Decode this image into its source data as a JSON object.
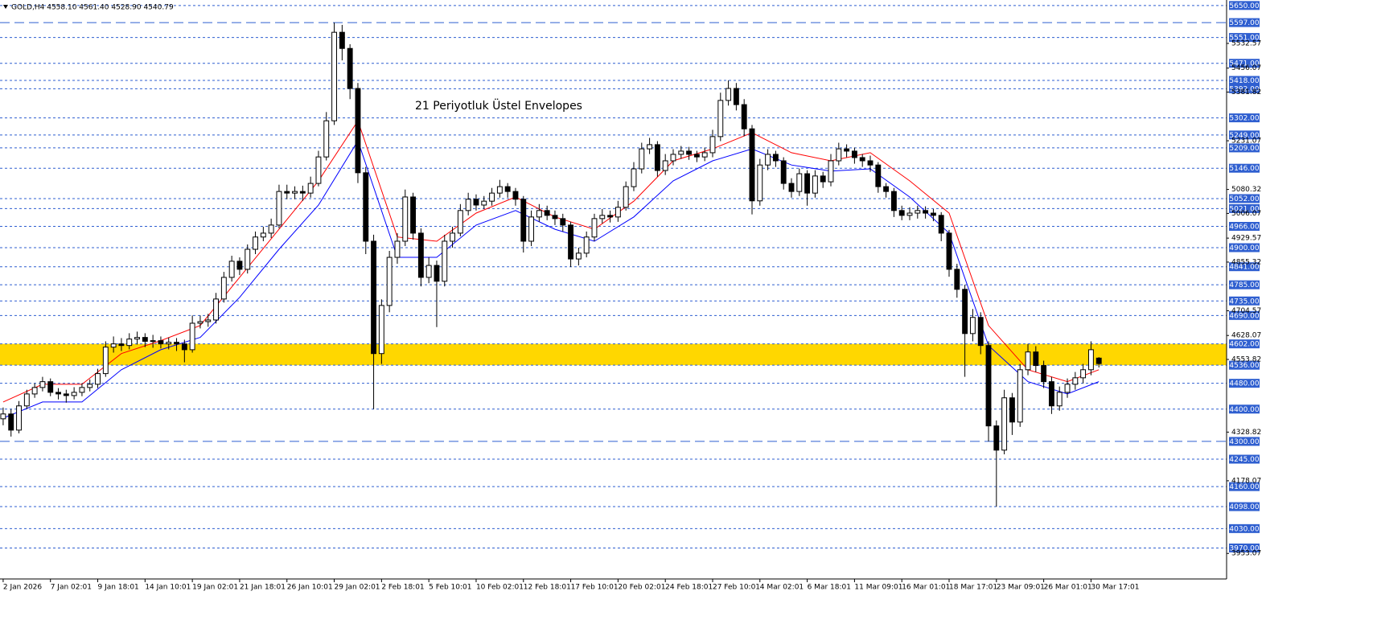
{
  "chart_data": {
    "type": "candlestick",
    "header": "GOLD,H4  4558.10 4561.40 4528.90 4540.79",
    "annotation": "21 Periyotluk Üstel Envelopes",
    "annotation_color": "#3d6fd8",
    "up_color": "#ffffff",
    "down_color": "#000000",
    "wick_color": "#000000",
    "ylim": [
      3874,
      5667
    ],
    "xlim": [
      -0.4,
      155.2
    ],
    "zone": {
      "from": 4536,
      "to": 4602,
      "color": "#ffd700"
    },
    "x": [
      0,
      1,
      2,
      3,
      4,
      5,
      6,
      7,
      8,
      9,
      10,
      11,
      12,
      13,
      14,
      15,
      16,
      17,
      18,
      19,
      20,
      21,
      22,
      23,
      24,
      25,
      26,
      27,
      28,
      29,
      30,
      31,
      32,
      33,
      34,
      35,
      36,
      37,
      38,
      39,
      40,
      41,
      42,
      43,
      44,
      45,
      46,
      47,
      48,
      49,
      50,
      51,
      52,
      53,
      54,
      55,
      56,
      57,
      58,
      59,
      60,
      61,
      62,
      63,
      64,
      65,
      66,
      67,
      68,
      69,
      70,
      71,
      72,
      73,
      74,
      75,
      76,
      77,
      78,
      79,
      80,
      81,
      82,
      83,
      84,
      85,
      86,
      87,
      88,
      89,
      90,
      91,
      92,
      93,
      94,
      95,
      96,
      97,
      98,
      99,
      100,
      101,
      102,
      103,
      104,
      105,
      106,
      107,
      108,
      109,
      110,
      111,
      112,
      113,
      114,
      115,
      116,
      117,
      118,
      119,
      120,
      121,
      122,
      123,
      124,
      125,
      126,
      127,
      128,
      129,
      130,
      131,
      132,
      133,
      134,
      135,
      136,
      137,
      138,
      139
    ],
    "open": [
      4370,
      4385,
      4335,
      4410,
      4447,
      4467,
      4485,
      4452,
      4447,
      4442,
      4452,
      4467,
      4477,
      4510,
      4592,
      4602,
      4597,
      4617,
      4622,
      4610,
      4612,
      4602,
      4607,
      4602,
      4584,
      4666,
      4671,
      4676,
      4741,
      4808,
      4858,
      4833,
      4895,
      4933,
      4945,
      4970,
      5074,
      5069,
      5074,
      5069,
      5099,
      5181,
      5293,
      5567,
      5517,
      5393,
      5132,
      4920,
      4572,
      4721,
      4870,
      4920,
      5057,
      4945,
      4808,
      4845,
      4796,
      4920,
      4945,
      5015,
      5050,
      5032,
      5044,
      5069,
      5089,
      5074,
      5050,
      4920,
      4995,
      5015,
      5000,
      4990,
      4970,
      4865,
      4883,
      4933,
      4990,
      5000,
      4995,
      5025,
      5089,
      5144,
      5206,
      5219,
      5139,
      5169,
      5189,
      5199,
      5189,
      5181,
      5194,
      5244,
      5356,
      5393,
      5343,
      5268,
      5045,
      5156,
      5189,
      5169,
      5099,
      5074,
      5129,
      5069,
      5122,
      5104,
      5169,
      5206,
      5199,
      5179,
      5169,
      5156,
      5089,
      5074,
      5015,
      5000,
      5007,
      5015,
      5007,
      5000,
      4945,
      4833,
      4771,
      4634,
      4684,
      4597,
      4348,
      4273,
      4435,
      4360,
      4522,
      4577,
      4535,
      4485,
      4410,
      4452,
      4477,
      4497,
      4522,
      4558
    ],
    "high": [
      4405,
      4400,
      4425,
      4460,
      4480,
      4500,
      4495,
      4465,
      4460,
      4468,
      4480,
      4492,
      4525,
      4610,
      4625,
      4620,
      4635,
      4640,
      4635,
      4630,
      4625,
      4622,
      4620,
      4615,
      4690,
      4690,
      4695,
      4760,
      4825,
      4875,
      4870,
      4910,
      4950,
      4965,
      4990,
      5095,
      5095,
      5090,
      5092,
      5120,
      5200,
      5320,
      5597,
      5590,
      5530,
      5410,
      5150,
      4940,
      4740,
      4890,
      4945,
      5080,
      5070,
      4960,
      4870,
      4860,
      4940,
      4965,
      5035,
      5070,
      5065,
      5060,
      5085,
      5110,
      5100,
      5085,
      5060,
      5015,
      5035,
      5030,
      5015,
      5005,
      4980,
      4900,
      4950,
      5005,
      5020,
      5015,
      5045,
      5105,
      5165,
      5225,
      5240,
      5230,
      5190,
      5205,
      5215,
      5212,
      5200,
      5210,
      5265,
      5380,
      5418,
      5410,
      5360,
      5280,
      5175,
      5205,
      5200,
      5180,
      5115,
      5145,
      5140,
      5140,
      5135,
      5190,
      5225,
      5220,
      5210,
      5190,
      5185,
      5165,
      5100,
      5085,
      5030,
      5025,
      5030,
      5028,
      5020,
      5010,
      4955,
      4850,
      4785,
      4710,
      4700,
      4610,
      4365,
      4460,
      4450,
      4540,
      4602,
      4595,
      4550,
      4500,
      4470,
      4495,
      4515,
      4540,
      4610,
      4561
    ],
    "low": [
      4350,
      4315,
      4325,
      4400,
      4435,
      4455,
      4440,
      4430,
      4420,
      4430,
      4440,
      4455,
      4465,
      4500,
      4575,
      4580,
      4585,
      4600,
      4592,
      4590,
      4588,
      4585,
      4580,
      4545,
      4575,
      4650,
      4655,
      4665,
      4730,
      4795,
      4815,
      4820,
      4880,
      4920,
      4930,
      4960,
      5050,
      5050,
      5045,
      5055,
      5090,
      5170,
      5280,
      5480,
      5360,
      5100,
      4880,
      4400,
      4540,
      4700,
      4850,
      4905,
      4925,
      4780,
      4790,
      4654,
      4780,
      4900,
      4935,
      5000,
      5015,
      5020,
      5030,
      5055,
      5055,
      5030,
      4885,
      4905,
      4980,
      4985,
      4970,
      4950,
      4840,
      4845,
      4870,
      4920,
      4975,
      4978,
      4980,
      5015,
      5075,
      5130,
      5190,
      5120,
      5125,
      5155,
      5175,
      5172,
      5165,
      5168,
      5180,
      5230,
      5340,
      5325,
      5245,
      5003,
      5030,
      5140,
      5150,
      5080,
      5055,
      5060,
      5030,
      5055,
      5085,
      5090,
      5155,
      5180,
      5160,
      5150,
      5135,
      5070,
      5055,
      4995,
      4985,
      4985,
      4990,
      4990,
      4982,
      4920,
      4810,
      4745,
      4500,
      4610,
      4570,
      4300,
      4098,
      4260,
      4320,
      4345,
      4505,
      4515,
      4465,
      4385,
      4395,
      4435,
      4460,
      4480,
      4505,
      4529
    ],
    "close": [
      4385,
      4335,
      4410,
      4447,
      4467,
      4485,
      4452,
      4447,
      4442,
      4452,
      4467,
      4477,
      4510,
      4592,
      4602,
      4597,
      4617,
      4622,
      4610,
      4612,
      4602,
      4607,
      4602,
      4584,
      4666,
      4671,
      4676,
      4741,
      4808,
      4858,
      4833,
      4895,
      4933,
      4945,
      4970,
      5074,
      5069,
      5074,
      5069,
      5099,
      5181,
      5293,
      5567,
      5517,
      5393,
      5132,
      4920,
      4572,
      4721,
      4870,
      4920,
      5057,
      4945,
      4808,
      4845,
      4796,
      4920,
      4945,
      5015,
      5050,
      5032,
      5044,
      5069,
      5089,
      5074,
      5050,
      4920,
      4995,
      5015,
      5000,
      4990,
      4970,
      4865,
      4883,
      4933,
      4990,
      5000,
      4995,
      5025,
      5089,
      5144,
      5206,
      5219,
      5139,
      5169,
      5189,
      5199,
      5189,
      5181,
      5194,
      5244,
      5356,
      5393,
      5343,
      5268,
      5045,
      5156,
      5189,
      5169,
      5099,
      5074,
      5129,
      5069,
      5122,
      5104,
      5169,
      5206,
      5199,
      5179,
      5169,
      5156,
      5089,
      5074,
      5015,
      5000,
      5007,
      5015,
      5007,
      5000,
      4945,
      4833,
      4771,
      4634,
      4684,
      4597,
      4348,
      4273,
      4435,
      4360,
      4522,
      4577,
      4535,
      4485,
      4410,
      4452,
      4477,
      4497,
      4522,
      4584,
      4541
    ],
    "envelopes": [
      {
        "color": "#ff0000",
        "x": [
          0,
          5,
          10,
          15,
          20,
          25,
          30,
          35,
          40,
          45,
          50,
          55,
          60,
          65,
          70,
          75,
          80,
          85,
          90,
          95,
          100,
          105,
          110,
          115,
          120,
          125,
          130,
          135,
          139
        ],
        "values": [
          4422,
          4477,
          4477,
          4572,
          4612,
          4659,
          4808,
          4957,
          5107,
          5293,
          4933,
          4920,
          5007,
          5057,
          4995,
          4957,
          5044,
          5169,
          5206,
          5256,
          5194,
          5169,
          5194,
          5107,
          5007,
          4659,
          4522,
          4485,
          4522
        ]
      },
      {
        "color": "#0000ff",
        "x": [
          0,
          5,
          10,
          15,
          20,
          25,
          30,
          35,
          40,
          45,
          50,
          55,
          60,
          65,
          70,
          75,
          80,
          85,
          90,
          95,
          100,
          105,
          110,
          115,
          120,
          125,
          130,
          135,
          139
        ],
        "values": [
          4372,
          4422,
          4422,
          4522,
          4584,
          4622,
          4746,
          4895,
          5032,
          5231,
          4870,
          4870,
          4970,
          5015,
          4957,
          4920,
          4995,
          5107,
          5169,
          5206,
          5156,
          5137,
          5144,
          5057,
          4945,
          4597,
          4485,
          4447,
          4485
        ]
      }
    ],
    "hlines": [
      {
        "value": 5650,
        "label": "5650.00"
      },
      {
        "value": 5597,
        "label": "5597.00",
        "dash": "long"
      },
      {
        "value": 5551,
        "label": "5551.00"
      },
      {
        "value": 5471,
        "label": "5471.00"
      },
      {
        "value": 5418,
        "label": "5418.00"
      },
      {
        "value": 5392,
        "label": "5392.00"
      },
      {
        "value": 5302,
        "label": "5302.00"
      },
      {
        "value": 5249,
        "label": "5249.00"
      },
      {
        "value": 5209,
        "label": "5209.00"
      },
      {
        "value": 5146,
        "label": "5146.00"
      },
      {
        "value": 5052,
        "label": "5052.00"
      },
      {
        "value": 5021,
        "label": "5021.00"
      },
      {
        "value": 4966,
        "label": "4966.00"
      },
      {
        "value": 4900,
        "label": "4900.00"
      },
      {
        "value": 4841,
        "label": "4841.00"
      },
      {
        "value": 4785,
        "label": "4785.00"
      },
      {
        "value": 4735,
        "label": "4735.00"
      },
      {
        "value": 4690,
        "label": "4690.00"
      },
      {
        "value": 4602,
        "label": "4602.00"
      },
      {
        "value": 4536,
        "label": "4536.00"
      },
      {
        "value": 4480,
        "label": "4480.00"
      },
      {
        "value": 4400,
        "label": "4400.00"
      },
      {
        "value": 4300,
        "label": "4300.00",
        "dash": "long"
      },
      {
        "value": 4245,
        "label": "4245.00"
      },
      {
        "value": 4160,
        "label": "4160.00"
      },
      {
        "value": 4098,
        "label": "4098.00"
      },
      {
        "value": 4030,
        "label": "4030.00"
      },
      {
        "value": 3970,
        "label": "3970.00"
      }
    ],
    "hline_color": "#2f5fd0",
    "yticks": [
      5532.57,
      5456.07,
      5381.82,
      5231.07,
      5080.32,
      5006.07,
      4929.57,
      4855.32,
      4704.57,
      4628.07,
      4553.82,
      4328.82,
      4178.07,
      3953.07
    ],
    "xticks": [
      {
        "value": 0,
        "label": "2 Jan 2026"
      },
      {
        "value": 6,
        "label": "7 Jan 02:01"
      },
      {
        "value": 12,
        "label": "9 Jan 18:01"
      },
      {
        "value": 18,
        "label": "14 Jan 10:01"
      },
      {
        "value": 24,
        "label": "19 Jan 02:01"
      },
      {
        "value": 30,
        "label": "21 Jan 18:01"
      },
      {
        "value": 36,
        "label": "26 Jan 10:01"
      },
      {
        "value": 42,
        "label": "29 Jan 02:01"
      },
      {
        "value": 48,
        "label": "2 Feb 18:01"
      },
      {
        "value": 54,
        "label": "5 Feb 10:01"
      },
      {
        "value": 60,
        "label": "10 Feb 02:01"
      },
      {
        "value": 66,
        "label": "12 Feb 18:01"
      },
      {
        "value": 72,
        "label": "17 Feb 10:01"
      },
      {
        "value": 78,
        "label": "20 Feb 02:01"
      },
      {
        "value": 84,
        "label": "24 Feb 18:01"
      },
      {
        "value": 90,
        "label": "27 Feb 10:01"
      },
      {
        "value": 96,
        "label": "4 Mar 02:01"
      },
      {
        "value": 102,
        "label": "6 Mar 18:01"
      },
      {
        "value": 108,
        "label": "11 Mar 09:01"
      },
      {
        "value": 114,
        "label": "16 Mar 01:01"
      },
      {
        "value": 120,
        "label": "18 Mar 17:01"
      },
      {
        "value": 126,
        "label": "23 Mar 09:01"
      },
      {
        "value": 132,
        "label": "26 Mar 01:01"
      },
      {
        "value": 138,
        "label": "30 Mar 17:01"
      }
    ]
  }
}
